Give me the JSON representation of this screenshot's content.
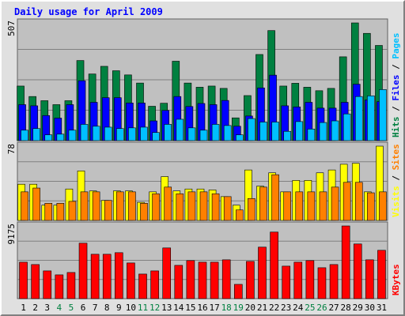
{
  "title": "Daily usage for April 2009",
  "colors": {
    "frame": "#e0e0e0",
    "plot_bg": "#c0c0c0",
    "grid": "#808080",
    "hits": "#008040",
    "files": "#0000ff",
    "pages": "#00c0ff",
    "visits": "#ffff00",
    "sites": "#ff8000",
    "kbytes": "#ff0000",
    "weekend_label": "#008040",
    "weekday_label": "#000000",
    "title": "#0000ff"
  },
  "chart_data": [
    {
      "type": "bar",
      "panel": "hits-files-pages",
      "title": "Daily usage for April 2009",
      "y_max_label": "507",
      "ylim": [
        0,
        507
      ],
      "grid": true,
      "legend": "right-vertical",
      "legend_items": [
        {
          "label": "Hits",
          "color": "#008040"
        },
        {
          "label": "Files",
          "color": "#0000ff"
        },
        {
          "label": "Pages",
          "color": "#00c0ff"
        }
      ],
      "series": [
        {
          "name": "Hits",
          "values": [
            235,
            190,
            172,
            155,
            172,
            345,
            287,
            320,
            301,
            283,
            248,
            148,
            161,
            342,
            248,
            230,
            235,
            225,
            98,
            194,
            371,
            474,
            235,
            247,
            230,
            215,
            225,
            361,
            507,
            462,
            410
          ]
        },
        {
          "name": "Files",
          "values": [
            155,
            150,
            108,
            97,
            155,
            258,
            165,
            185,
            185,
            162,
            162,
            85,
            130,
            190,
            147,
            160,
            155,
            173,
            62,
            106,
            227,
            282,
            150,
            145,
            165,
            140,
            140,
            165,
            243,
            175,
            168
          ]
        },
        {
          "name": "Pages",
          "values": [
            45,
            52,
            25,
            28,
            45,
            70,
            62,
            58,
            52,
            55,
            58,
            35,
            70,
            92,
            55,
            45,
            70,
            65,
            25,
            95,
            80,
            80,
            40,
            82,
            50,
            78,
            85,
            115,
            190,
            193,
            220
          ]
        }
      ]
    },
    {
      "type": "bar",
      "panel": "visits-sites",
      "y_max_label": "78",
      "ylim": [
        0,
        78
      ],
      "grid": true,
      "legend": "right-vertical",
      "legend_items": [
        {
          "label": "Visits",
          "color": "#ffff00"
        },
        {
          "label": "Sites",
          "color": "#ff8000"
        }
      ],
      "series": [
        {
          "name": "Visits",
          "values": [
            38,
            38,
            16,
            16,
            33,
            52,
            31,
            21,
            31,
            31,
            19,
            30,
            46,
            31,
            33,
            33,
            32,
            25,
            16,
            53,
            36,
            50,
            30,
            42,
            42,
            50,
            53,
            59,
            60,
            30,
            78
          ]
        },
        {
          "name": "Sites",
          "values": [
            30,
            34,
            18,
            18,
            20,
            30,
            30,
            21,
            30,
            30,
            18,
            28,
            35,
            28,
            30,
            30,
            28,
            25,
            11,
            23,
            35,
            48,
            30,
            30,
            30,
            30,
            35,
            40,
            40,
            29,
            30
          ]
        }
      ]
    },
    {
      "type": "bar",
      "panel": "kbytes",
      "y_max_label": "9175",
      "ylim": [
        0,
        9175
      ],
      "grid": true,
      "legend": "right-vertical",
      "legend_items": [
        {
          "label": "KBytes",
          "color": "#ff0000"
        }
      ],
      "series": [
        {
          "name": "KBytes",
          "values": [
            4600,
            4300,
            3500,
            3000,
            3300,
            7000,
            5600,
            5600,
            5800,
            4500,
            3100,
            3500,
            6400,
            4200,
            4800,
            4600,
            4600,
            4900,
            1800,
            4700,
            6500,
            8400,
            4100,
            4600,
            4800,
            3900,
            4300,
            9175,
            6900,
            4900,
            6100
          ]
        }
      ]
    }
  ],
  "days": [
    {
      "label": "1",
      "weekend": false
    },
    {
      "label": "2",
      "weekend": false
    },
    {
      "label": "3",
      "weekend": false
    },
    {
      "label": "4",
      "weekend": true
    },
    {
      "label": "5",
      "weekend": true
    },
    {
      "label": "6",
      "weekend": false
    },
    {
      "label": "7",
      "weekend": false
    },
    {
      "label": "8",
      "weekend": false
    },
    {
      "label": "9",
      "weekend": false
    },
    {
      "label": "10",
      "weekend": false
    },
    {
      "label": "11",
      "weekend": true
    },
    {
      "label": "12",
      "weekend": true
    },
    {
      "label": "13",
      "weekend": false
    },
    {
      "label": "14",
      "weekend": false
    },
    {
      "label": "15",
      "weekend": false
    },
    {
      "label": "16",
      "weekend": false
    },
    {
      "label": "17",
      "weekend": false
    },
    {
      "label": "18",
      "weekend": true
    },
    {
      "label": "19",
      "weekend": true
    },
    {
      "label": "20",
      "weekend": false
    },
    {
      "label": "21",
      "weekend": false
    },
    {
      "label": "22",
      "weekend": false
    },
    {
      "label": "23",
      "weekend": false
    },
    {
      "label": "24",
      "weekend": false
    },
    {
      "label": "25",
      "weekend": true
    },
    {
      "label": "26",
      "weekend": true
    },
    {
      "label": "27",
      "weekend": false
    },
    {
      "label": "28",
      "weekend": false
    },
    {
      "label": "29",
      "weekend": false
    },
    {
      "label": "30",
      "weekend": false
    },
    {
      "label": "31",
      "weekend": false
    }
  ]
}
